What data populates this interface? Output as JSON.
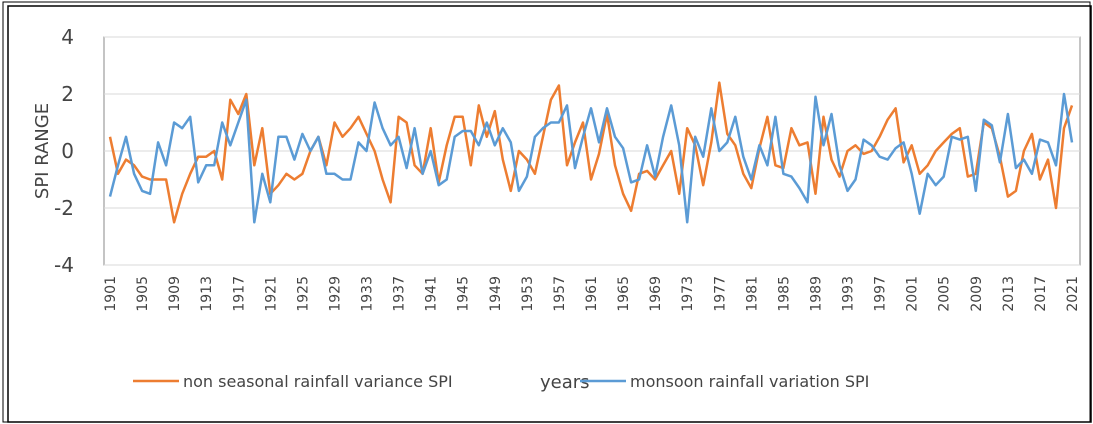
{
  "chart_data": {
    "type": "line",
    "y_label": "SPI RANGE",
    "x_label": "years",
    "categories": [
      "1901",
      null,
      null,
      null,
      "1905",
      null,
      null,
      null,
      "1909",
      null,
      null,
      null,
      "1913",
      null,
      null,
      null,
      "1917",
      null,
      null,
      null,
      "1921",
      null,
      null,
      null,
      "1925",
      null,
      null,
      null,
      "1929",
      null,
      null,
      null,
      "1933",
      null,
      null,
      null,
      "1937",
      null,
      null,
      null,
      "1941",
      null,
      null,
      null,
      "1945",
      null,
      null,
      null,
      "1949",
      null,
      null,
      null,
      "1953",
      null,
      null,
      null,
      "1957",
      null,
      null,
      null,
      "1961",
      null,
      null,
      null,
      "1965",
      null,
      null,
      null,
      "1969",
      null,
      null,
      null,
      "1973",
      null,
      null,
      null,
      "1977",
      null,
      null,
      null,
      "1981",
      null,
      null,
      null,
      "1985",
      null,
      null,
      null,
      "1989",
      null,
      null,
      null,
      "1993",
      null,
      null,
      null,
      "1997",
      null,
      null,
      null,
      "2001",
      null,
      null,
      null,
      "2005",
      null,
      null,
      null,
      "2009",
      null,
      null,
      null,
      "2013",
      null,
      null,
      null,
      "2017",
      null,
      null,
      null,
      "2021"
    ],
    "series": [
      {
        "name": "non seasonal rainfall variance SPI",
        "color": "#ed7d31",
        "values": [
          0.5,
          -0.8,
          -0.3,
          -0.5,
          -0.9,
          -1.0,
          -1.0,
          -1.0,
          -2.5,
          -1.5,
          -0.8,
          -0.2,
          -0.2,
          0.0,
          -1.0,
          1.8,
          1.3,
          2.0,
          -0.5,
          0.8,
          -1.5,
          -1.2,
          -0.8,
          -1.0,
          -0.8,
          0.0,
          0.5,
          -0.5,
          1.0,
          0.5,
          0.8,
          1.2,
          0.6,
          0.0,
          -1.0,
          -1.8,
          1.2,
          1.0,
          -0.5,
          -0.8,
          0.8,
          -1.1,
          0.2,
          1.2,
          1.2,
          -0.5,
          1.6,
          0.5,
          1.4,
          -0.3,
          -1.4,
          0.0,
          -0.3,
          -0.8,
          0.5,
          1.8,
          2.3,
          -0.5,
          0.3,
          1.0,
          -1.0,
          -0.1,
          1.3,
          -0.5,
          -1.5,
          -2.1,
          -0.8,
          -0.7,
          -1.0,
          -0.5,
          0.0,
          -1.5,
          0.8,
          0.2,
          -1.2,
          0.3,
          2.4,
          0.6,
          0.2,
          -0.8,
          -1.3,
          0.1,
          1.2,
          -0.5,
          -0.6,
          0.8,
          0.2,
          0.3,
          -1.5,
          1.2,
          -0.3,
          -0.9,
          0.0,
          0.2,
          -0.1,
          0.0,
          0.5,
          1.1,
          1.5,
          -0.4,
          0.2,
          -0.8,
          -0.5,
          0.0,
          0.3,
          0.6,
          0.8,
          -0.9,
          -0.8,
          1.0,
          0.8,
          -0.2,
          -1.6,
          -1.4,
          0.0,
          0.6,
          -1.0,
          -0.3,
          -2.0,
          0.8,
          1.6
        ]
      },
      {
        "name": "monsoon rainfall variation SPI",
        "color": "#5b9bd5",
        "values": [
          -1.6,
          -0.5,
          0.5,
          -0.8,
          -1.4,
          -1.5,
          0.3,
          -0.5,
          1.0,
          0.8,
          1.2,
          -1.1,
          -0.5,
          -0.5,
          1.0,
          0.2,
          1.0,
          1.8,
          -2.5,
          -0.8,
          -1.8,
          0.5,
          0.5,
          -0.3,
          0.6,
          0.0,
          0.5,
          -0.8,
          -0.8,
          -1.0,
          -1.0,
          0.3,
          0.0,
          1.7,
          0.8,
          0.2,
          0.5,
          -0.6,
          0.8,
          -0.8,
          0.0,
          -1.2,
          -1.0,
          0.5,
          0.7,
          0.7,
          0.2,
          1.0,
          0.2,
          0.8,
          0.3,
          -1.4,
          -0.9,
          0.5,
          0.8,
          1.0,
          1.0,
          1.6,
          -0.6,
          0.5,
          1.5,
          0.3,
          1.5,
          0.5,
          0.1,
          -1.1,
          -1.0,
          0.2,
          -0.9,
          0.5,
          1.6,
          0.2,
          -2.5,
          0.5,
          -0.2,
          1.5,
          0.0,
          0.3,
          1.2,
          -0.2,
          -1.0,
          0.2,
          -0.5,
          1.2,
          -0.8,
          -0.9,
          -1.3,
          -1.8,
          1.9,
          0.2,
          1.3,
          -0.5,
          -1.4,
          -1.0,
          0.4,
          0.2,
          -0.2,
          -0.3,
          0.1,
          0.3,
          -0.8,
          -2.2,
          -0.8,
          -1.2,
          -0.9,
          0.5,
          0.4,
          0.5,
          -1.4,
          1.1,
          0.9,
          -0.4,
          1.3,
          -0.6,
          -0.3,
          -0.8,
          0.4,
          0.3,
          -0.5,
          2.0,
          0.3
        ]
      }
    ],
    "ylim": [
      -4,
      4
    ],
    "yticks": [
      -4,
      -2,
      0,
      2,
      4
    ],
    "grid": true
  }
}
